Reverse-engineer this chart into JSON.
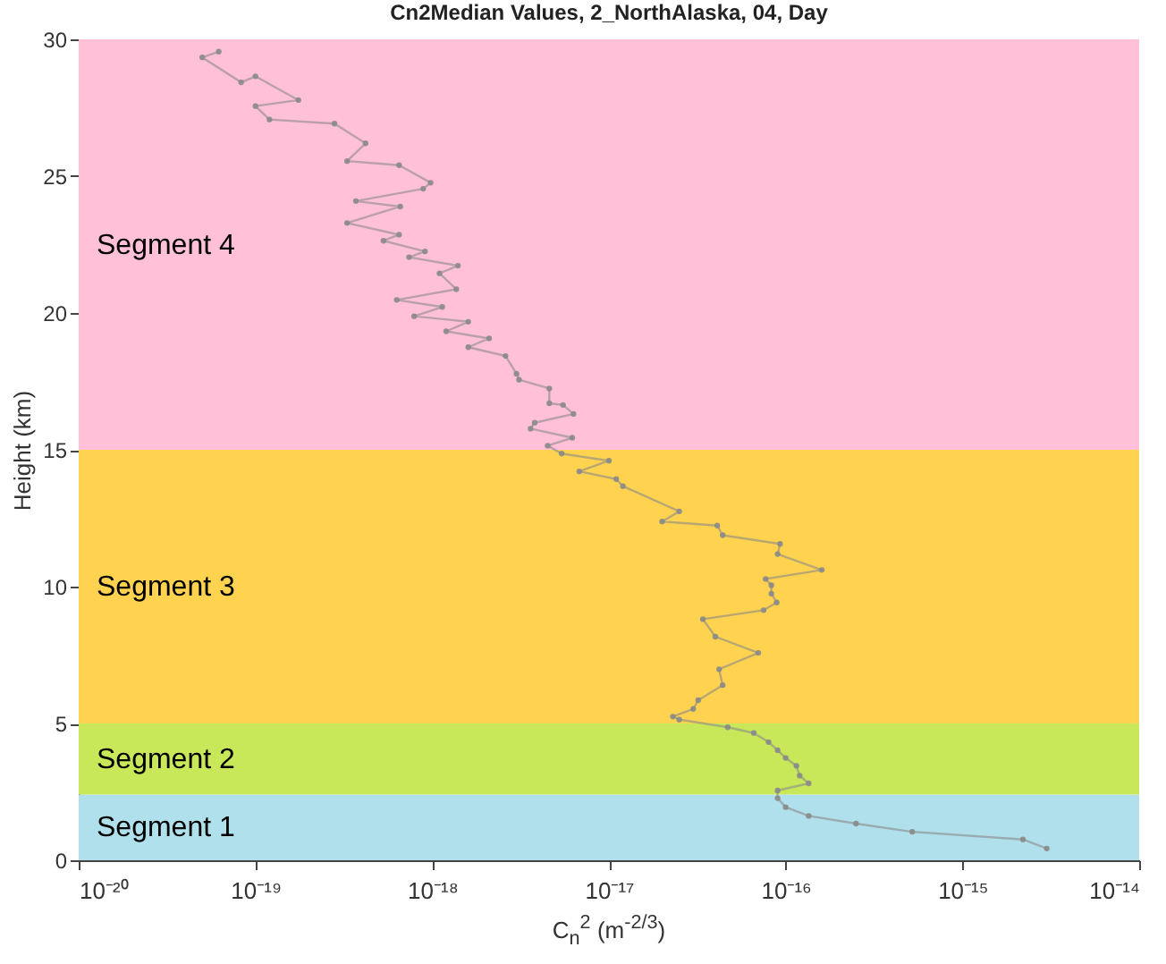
{
  "chart_data": {
    "type": "line",
    "title": "Cn2Median Values, 2_NorthAlaska, 04, Day",
    "xlabel": "C$_{n}$$^{2}$ (m$^{-2/3}$)",
    "ylabel": "Height (km)",
    "log": "x",
    "xlim": [
      1e-20,
      1e-14
    ],
    "ylim": [
      0,
      30
    ],
    "xticks": [
      {
        "value": 1e-20,
        "label": "10⁻²⁰"
      },
      {
        "value": 1e-19,
        "label": "10⁻¹⁹"
      },
      {
        "value": 1e-18,
        "label": "10⁻¹⁸"
      },
      {
        "value": 1e-17,
        "label": "10⁻¹⁷"
      },
      {
        "value": 1e-16,
        "label": "10⁻¹⁶"
      },
      {
        "value": 1e-15,
        "label": "10⁻¹⁵"
      },
      {
        "value": 1e-14,
        "label": "10⁻¹⁴"
      }
    ],
    "yticks": [
      0,
      5,
      10,
      15,
      20,
      25,
      30
    ],
    "grid": false,
    "marker": "circle",
    "line_style": "solid",
    "bands": [
      {
        "axis": "y",
        "from": 0,
        "to": 2.4,
        "label": "Segment 1",
        "color": "#b0e0ec"
      },
      {
        "axis": "y",
        "from": 2.4,
        "to": 5,
        "label": "Segment 2",
        "color": "#c8e85a"
      },
      {
        "axis": "y",
        "from": 5,
        "to": 15,
        "label": "Segment 3",
        "color": "#ffd34f"
      },
      {
        "axis": "y",
        "from": 15,
        "to": 30,
        "label": "Segment 4",
        "color": "#ffc0d8"
      }
    ],
    "series": [
      {
        "color": "#8a8a8a",
        "x": [
          3e-15,
          2.2e-15,
          5.2e-16,
          2.5e-16,
          1.35e-16,
          1e-16,
          9e-17,
          9e-17,
          1.35e-16,
          1.2e-16,
          1.15e-16,
          1e-16,
          9e-17,
          8e-17,
          6.6e-17,
          4.7e-17,
          2.5e-17,
          2.3e-17,
          3e-17,
          3.2e-17,
          4.4e-17,
          4.2e-17,
          7e-17,
          4e-17,
          3.4e-17,
          7.5e-17,
          8.9e-17,
          8.3e-17,
          8.3e-17,
          7.7e-17,
          1.6e-16,
          9e-17,
          9.3e-17,
          4.4e-17,
          4.1e-17,
          2e-17,
          2.5e-17,
          1.2e-17,
          1.1e-17,
          6.8e-18,
          1e-17,
          5.4e-18,
          4.5e-18,
          6.2e-18,
          3.6e-18,
          3.8e-18,
          6.3e-18,
          5.5e-18,
          4.6e-18,
          4.6e-18,
          3.1e-18,
          3e-18,
          2.6e-18,
          1.6e-18,
          2.1e-18,
          1.2e-18,
          1.6e-18,
          7.9e-19,
          1.14e-18,
          6.3e-19,
          1.37e-18,
          1.1e-18,
          1.4e-18,
          7.4e-19,
          9.1e-19,
          5.3e-19,
          6.5e-19,
          3.3e-19,
          6.6e-19,
          3.7e-19,
          8.9e-19,
          9.8e-19,
          6.5e-19,
          3.3e-19,
          4.2e-19,
          2.8e-19,
          1.2e-19,
          1e-19,
          1.75e-19,
          1e-19,
          8.3e-20,
          5e-20,
          6.2e-20
        ],
        "values": [
          0.43,
          0.76,
          1.04,
          1.34,
          1.62,
          1.94,
          2.27,
          2.55,
          2.81,
          3.09,
          3.45,
          3.74,
          4.02,
          4.32,
          4.65,
          4.86,
          5.14,
          5.25,
          5.53,
          5.85,
          6.4,
          6.98,
          7.58,
          8.17,
          8.81,
          9.14,
          9.42,
          9.74,
          10.05,
          10.28,
          10.61,
          11.19,
          11.56,
          11.88,
          12.23,
          12.38,
          12.75,
          13.67,
          13.93,
          14.21,
          14.6,
          14.86,
          15.15,
          15.44,
          15.77,
          15.99,
          16.31,
          16.64,
          16.7,
          17.24,
          17.56,
          17.78,
          18.43,
          18.75,
          19.07,
          19.33,
          19.68,
          19.88,
          20.22,
          20.48,
          20.87,
          21.45,
          21.73,
          22.04,
          22.25,
          22.64,
          22.86,
          23.29,
          23.89,
          24.09,
          24.54,
          24.76,
          25.4,
          25.55,
          26.2,
          26.92,
          27.07,
          27.56,
          27.78,
          28.65,
          28.43,
          29.34,
          29.55
        ]
      }
    ]
  }
}
